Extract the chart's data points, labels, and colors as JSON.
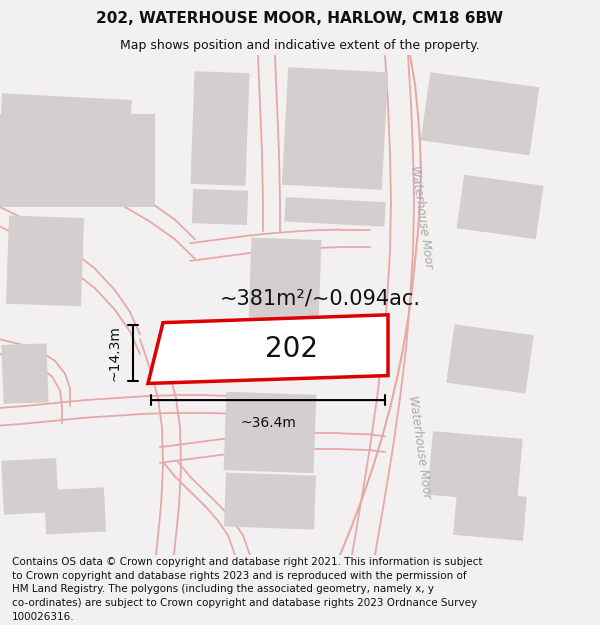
{
  "title": "202, WATERHOUSE MOOR, HARLOW, CM18 6BW",
  "subtitle": "Map shows position and indicative extent of the property.",
  "footer": "Contains OS data © Crown copyright and database right 2021. This information is subject\nto Crown copyright and database rights 2023 and is reproduced with the permission of\nHM Land Registry. The polygons (including the associated geometry, namely x, y\nco-ordinates) are subject to Crown copyright and database rights 2023 Ordnance Survey\n100026316.",
  "bg_color": "#f2f0f0",
  "map_bg": "#ffffff",
  "road_color": "#e8a8a8",
  "highlight_edge": "#dd0000",
  "highlight_fill": "#ffffff",
  "building_fill": "#d4cece",
  "text_dark": "#111111",
  "road_text": "#aaaaaa",
  "area_text": "~381m²/~0.094ac.",
  "plot_label": "202",
  "dim_w": "~36.4m",
  "dim_h": "~14.3m",
  "title_fs": 11,
  "subtitle_fs": 9,
  "footer_fs": 7.5,
  "area_fs": 15,
  "label_fs": 20,
  "dim_fs": 10,
  "road_fs": 8.5
}
